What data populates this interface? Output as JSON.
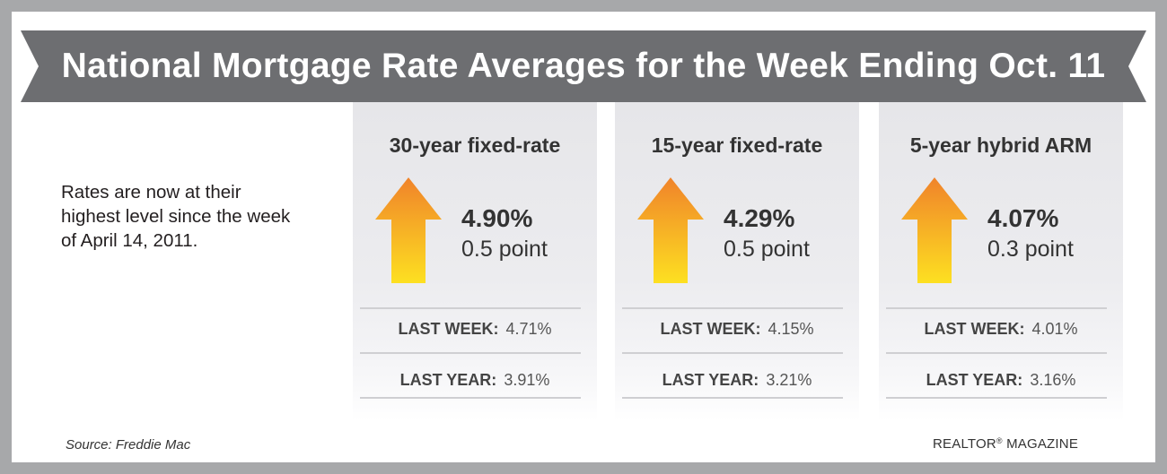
{
  "title": "National Mortgage Rate Averages for the Week Ending Oct. 11",
  "intro": "Rates are now at their highest level since the week of April 14, 2011.",
  "colors": {
    "banner": "#6d6e71",
    "frame": "#a7a8aa",
    "arrow_top": "#f0832a",
    "arrow_bottom": "#fde021"
  },
  "panels": [
    {
      "title": "30-year fixed-rate",
      "icon": "up-arrow-icon",
      "rate": "4.90%",
      "change": "0.5 point",
      "last_week_label": "LAST WEEK:",
      "last_week_value": "4.71%",
      "last_year_label": "LAST YEAR:",
      "last_year_value": "3.91%"
    },
    {
      "title": "15-year fixed-rate",
      "icon": "up-arrow-icon",
      "rate": "4.29%",
      "change": "0.5 point",
      "last_week_label": "LAST WEEK:",
      "last_week_value": "4.15%",
      "last_year_label": "LAST YEAR:",
      "last_year_value": "3.21%"
    },
    {
      "title": "5-year hybrid ARM",
      "icon": "up-arrow-icon",
      "rate": "4.07%",
      "change": "0.3 point",
      "last_week_label": "LAST WEEK:",
      "last_week_value": "4.01%",
      "last_year_label": "LAST YEAR:",
      "last_year_value": "3.16%"
    }
  ],
  "source": "Source: Freddie Mac",
  "brand": {
    "name": "REALTOR",
    "mark": "®",
    "suffix": " MAGAZINE"
  }
}
